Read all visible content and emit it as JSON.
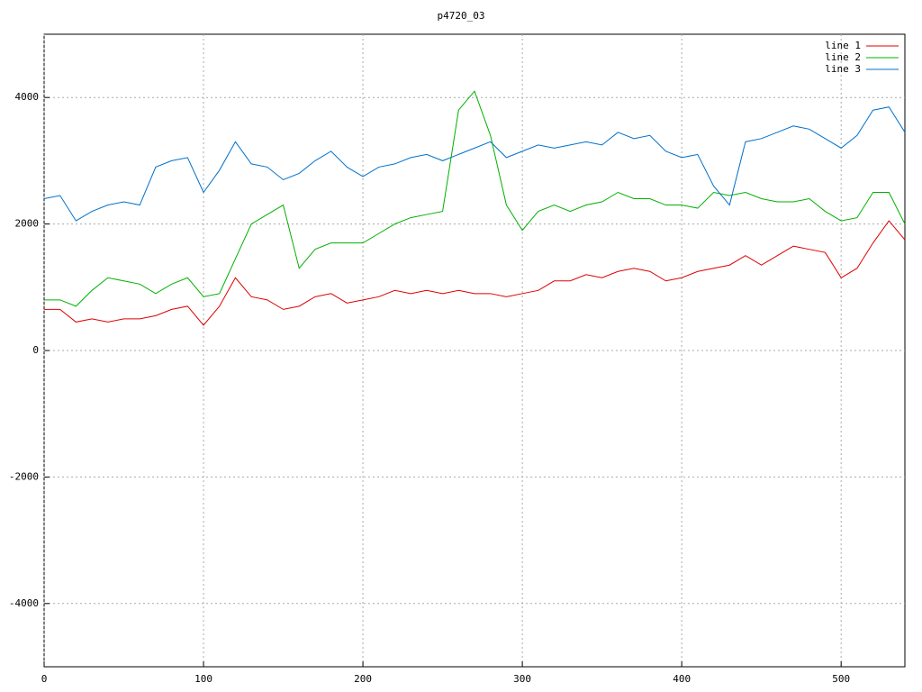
{
  "chart_data": {
    "type": "line",
    "title": "p4720_03",
    "x": [
      0,
      10,
      20,
      30,
      40,
      50,
      60,
      70,
      80,
      90,
      100,
      110,
      120,
      130,
      140,
      150,
      160,
      170,
      180,
      190,
      200,
      210,
      220,
      230,
      240,
      250,
      260,
      270,
      280,
      290,
      300,
      310,
      320,
      330,
      340,
      350,
      360,
      370,
      380,
      390,
      400,
      410,
      420,
      430,
      440,
      450,
      460,
      470,
      480,
      490,
      500,
      510,
      520,
      530,
      540
    ],
    "series": [
      {
        "name": "line 1",
        "color": "#dd0000",
        "values": [
          650,
          650,
          450,
          500,
          450,
          500,
          500,
          550,
          650,
          700,
          400,
          700,
          1150,
          850,
          800,
          650,
          700,
          850,
          900,
          750,
          800,
          850,
          950,
          900,
          950,
          900,
          950,
          900,
          900,
          850,
          900,
          950,
          1100,
          1100,
          1200,
          1150,
          1250,
          1300,
          1250,
          1100,
          1150,
          1250,
          1300,
          1350,
          1500,
          1350,
          1500,
          1650,
          1600,
          1550,
          1150,
          1300,
          1700,
          2050,
          1750
        ]
      },
      {
        "name": "line 2",
        "color": "#00b000",
        "values": [
          800,
          800,
          700,
          950,
          1150,
          1100,
          1050,
          900,
          1050,
          1150,
          850,
          900,
          1450,
          2000,
          2150,
          2300,
          1300,
          1600,
          1700,
          1700,
          1700,
          1850,
          2000,
          2100,
          2150,
          2200,
          3800,
          4100,
          3400,
          2300,
          1900,
          2200,
          2300,
          2200,
          2300,
          2350,
          2500,
          2400,
          2400,
          2300,
          2300,
          2250,
          2500,
          2450,
          2500,
          2400,
          2350,
          2350,
          2400,
          2200,
          2050,
          2100,
          2500,
          2500,
          2000
        ]
      },
      {
        "name": "line 3",
        "color": "#0070cc",
        "values": [
          2400,
          2450,
          2050,
          2200,
          2300,
          2350,
          2300,
          2900,
          3000,
          3050,
          2500,
          2850,
          3300,
          2950,
          2900,
          2700,
          2800,
          3000,
          3150,
          2900,
          2750,
          2900,
          2950,
          3050,
          3100,
          3000,
          3100,
          3200,
          3300,
          3050,
          3150,
          3250,
          3200,
          3250,
          3300,
          3250,
          3450,
          3350,
          3400,
          3150,
          3050,
          3100,
          2600,
          2300,
          3300,
          3350,
          3450,
          3550,
          3500,
          3350,
          3200,
          3400,
          3800,
          3850,
          3450
        ]
      }
    ],
    "xlim": [
      0,
      540
    ],
    "xticks": [
      0,
      100,
      200,
      300,
      400,
      500
    ],
    "ylim": [
      -5000,
      5000
    ],
    "yticks": [
      -4000,
      -2000,
      0,
      2000,
      4000
    ],
    "grid": true,
    "legend": "upper right"
  }
}
